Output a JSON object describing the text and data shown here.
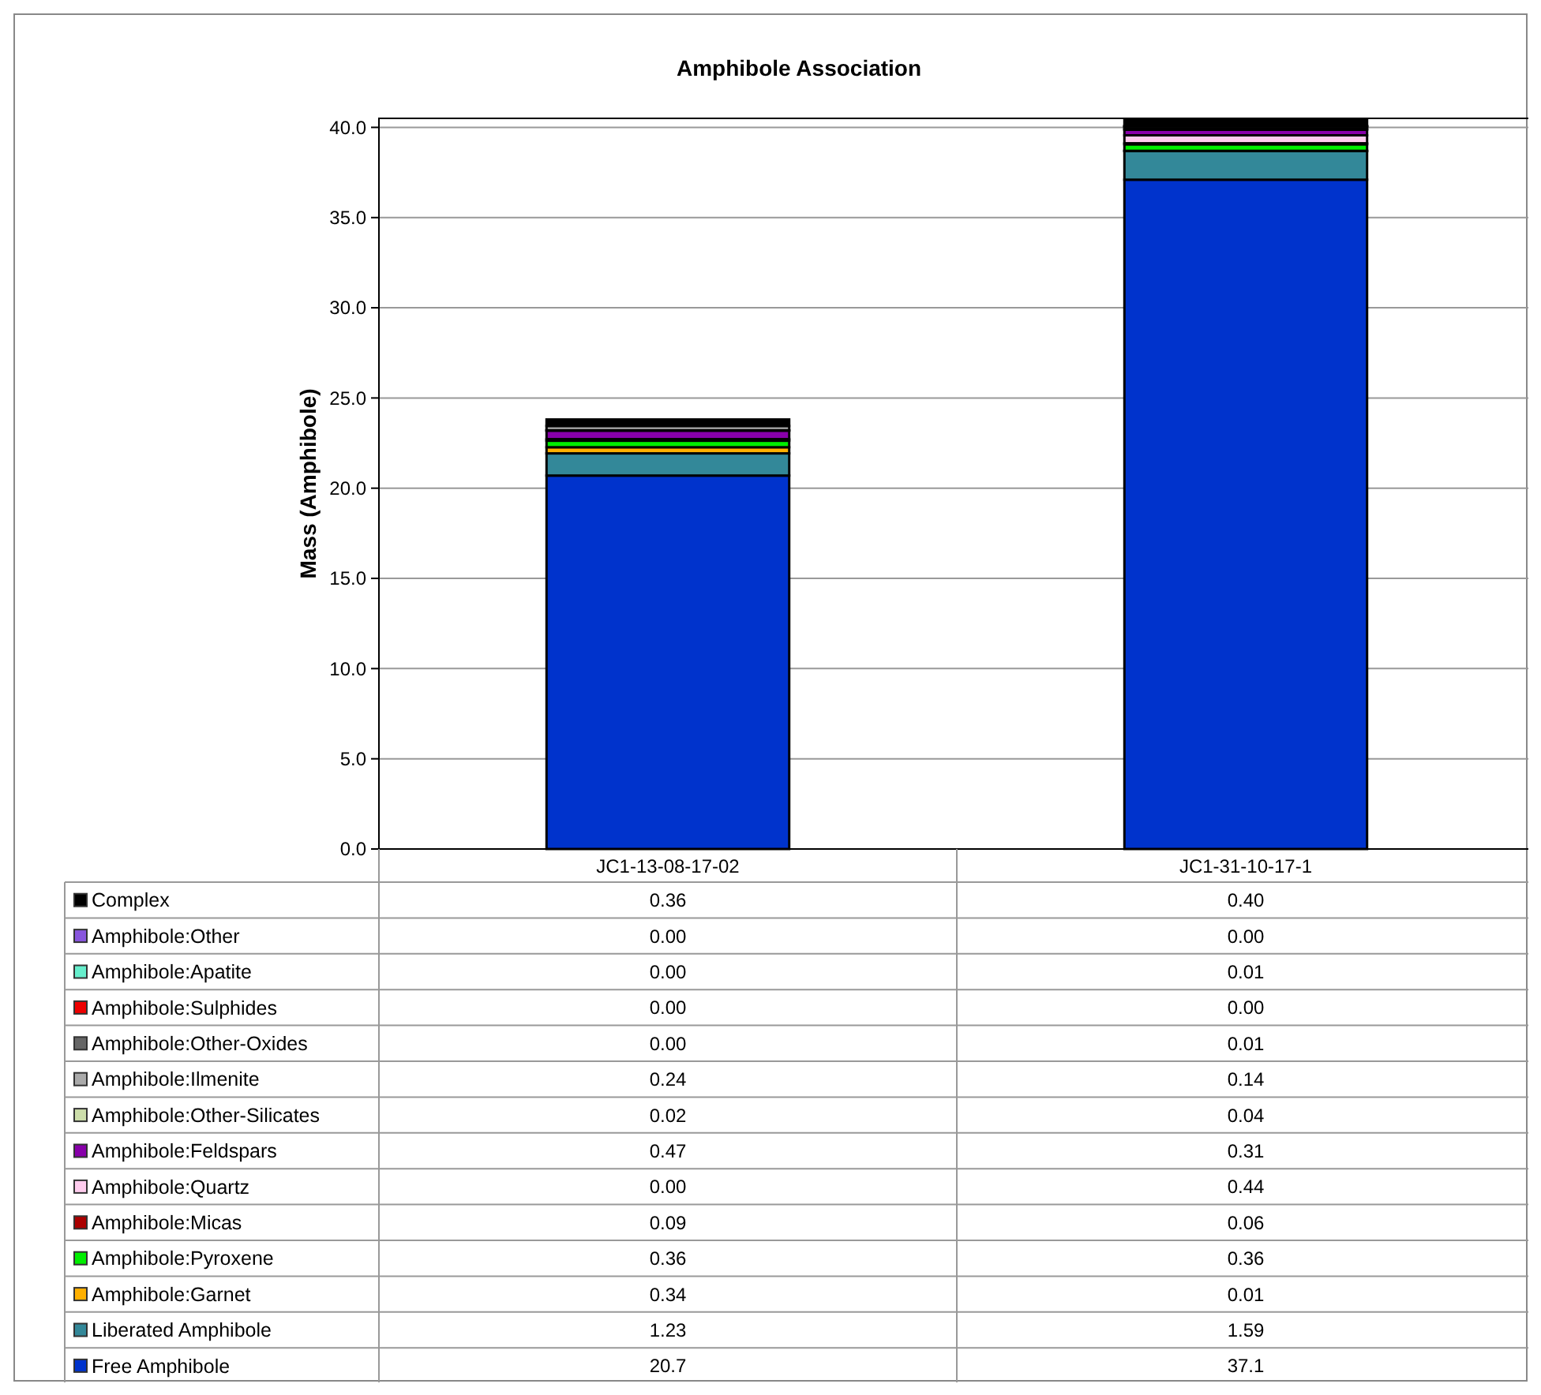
{
  "chart_data": {
    "type": "bar",
    "title": "Amphibole Association",
    "ylabel": "Mass (Amphibole)",
    "categories": [
      "JC1-13-08-17-02",
      "JC1-31-10-17-1"
    ],
    "stacked": true,
    "ylim": [
      0,
      40.5
    ],
    "yticks": [
      {
        "value": 0,
        "label": "0.0"
      },
      {
        "value": 5,
        "label": "5.0"
      },
      {
        "value": 10,
        "label": "10.0"
      },
      {
        "value": 15,
        "label": "15.0"
      },
      {
        "value": 20,
        "label": "20.0"
      },
      {
        "value": 25,
        "label": "25.0"
      },
      {
        "value": 30,
        "label": "30.0"
      },
      {
        "value": 35,
        "label": "35.0"
      },
      {
        "value": 40,
        "label": "40.0"
      }
    ],
    "grid": "y",
    "legend": "bottom",
    "series": [
      {
        "name": "Free Amphibole",
        "color": "#0033cc",
        "values": [
          20.7,
          37.1
        ],
        "value_labels": [
          "20.7",
          "37.1"
        ]
      },
      {
        "name": "Liberated Amphibole",
        "color": "#338899",
        "values": [
          1.23,
          1.59
        ],
        "value_labels": [
          "1.23",
          "1.59"
        ]
      },
      {
        "name": "Amphibole:Garnet",
        "color": "#ffb000",
        "values": [
          0.34,
          0.01
        ],
        "value_labels": [
          "0.34",
          "0.01"
        ]
      },
      {
        "name": "Amphibole:Pyroxene",
        "color": "#00ee00",
        "values": [
          0.36,
          0.36
        ],
        "value_labels": [
          "0.36",
          "0.36"
        ]
      },
      {
        "name": "Amphibole:Micas",
        "color": "#aa0000",
        "values": [
          0.09,
          0.06
        ],
        "value_labels": [
          "0.09",
          "0.06"
        ]
      },
      {
        "name": "Amphibole:Quartz",
        "color": "#ffccee",
        "values": [
          0,
          0.44
        ],
        "value_labels": [
          "0.00",
          "0.44"
        ]
      },
      {
        "name": "Amphibole:Feldspars",
        "color": "#8800aa",
        "values": [
          0.47,
          0.31
        ],
        "value_labels": [
          "0.47",
          "0.31"
        ]
      },
      {
        "name": "Amphibole:Other-Silicates",
        "color": "#ccddaa",
        "values": [
          0.02,
          0.04
        ],
        "value_labels": [
          "0.02",
          "0.04"
        ]
      },
      {
        "name": "Amphibole:Ilmenite",
        "color": "#aaaaaa",
        "values": [
          0.24,
          0.14
        ],
        "value_labels": [
          "0.24",
          "0.14"
        ]
      },
      {
        "name": "Amphibole:Other-Oxides",
        "color": "#666666",
        "values": [
          0,
          0.01
        ],
        "value_labels": [
          "0.00",
          "0.01"
        ]
      },
      {
        "name": "Amphibole:Sulphides",
        "color": "#ee0000",
        "values": [
          0,
          0
        ],
        "value_labels": [
          "0.00",
          "0.00"
        ]
      },
      {
        "name": "Amphibole:Apatite",
        "color": "#66eecc",
        "values": [
          0,
          0.01
        ],
        "value_labels": [
          "0.00",
          "0.01"
        ]
      },
      {
        "name": "Amphibole:Other",
        "color": "#8855dd",
        "values": [
          0,
          0
        ],
        "value_labels": [
          "0.00",
          "0.00"
        ]
      },
      {
        "name": "Complex",
        "color": "#000000",
        "values": [
          0.36,
          0.4
        ],
        "value_labels": [
          "0.36",
          "0.40"
        ]
      }
    ]
  }
}
